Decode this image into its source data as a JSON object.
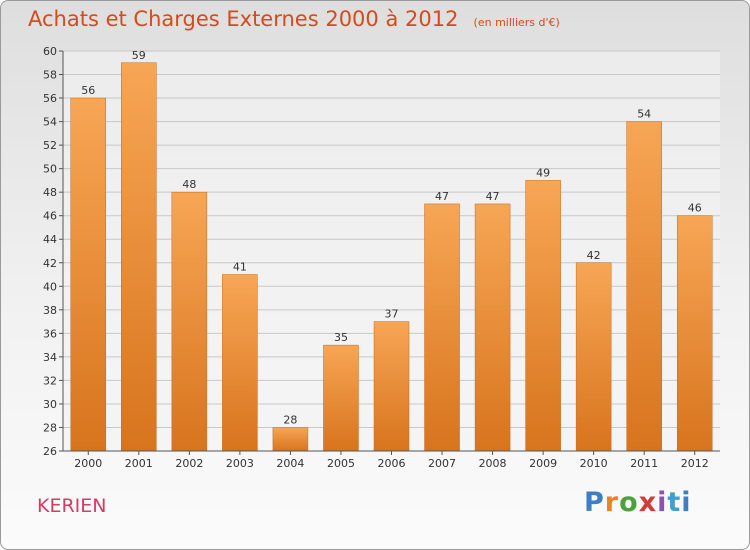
{
  "chart_data": {
    "type": "bar",
    "title": "Achats et Charges Externes 2000 à 2012",
    "subtitle": "(en milliers d'€)",
    "categories": [
      "2000",
      "2001",
      "2002",
      "2003",
      "2004",
      "2005",
      "2006",
      "2007",
      "2008",
      "2009",
      "2010",
      "2011",
      "2012"
    ],
    "values": [
      56,
      59,
      48,
      41,
      28,
      35,
      37,
      47,
      47,
      49,
      42,
      54,
      46
    ],
    "ylim": [
      26,
      60
    ],
    "yticks": [
      26,
      28,
      30,
      32,
      34,
      36,
      38,
      40,
      42,
      44,
      46,
      48,
      50,
      52,
      54,
      56,
      58,
      60
    ],
    "grid": true,
    "bar_color": "#f0902e"
  },
  "location": "KERIEN",
  "brand": "Proxiti"
}
